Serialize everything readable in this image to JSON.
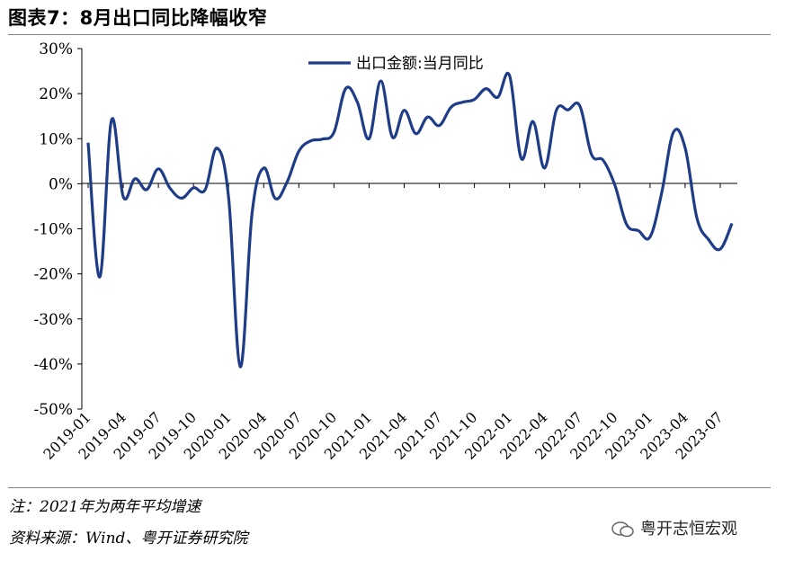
{
  "header": {
    "title": "图表7：8月出口同比降幅收窄"
  },
  "footer": {
    "note": "注：2021年为两年平均增速",
    "source": "资料来源：Wind、粤开证券研究院",
    "watermark": "粤开志恒宏观"
  },
  "chart_data": {
    "type": "line",
    "title": "",
    "xlabel": "",
    "ylabel": "",
    "ylim": [
      -50,
      30
    ],
    "y_ticks": [
      "30%",
      "20%",
      "10%",
      "0%",
      "-10%",
      "-20%",
      "-30%",
      "-40%",
      "-50%"
    ],
    "y_tick_values": [
      30,
      20,
      10,
      0,
      -10,
      -20,
      -30,
      -40,
      -50
    ],
    "x_tick_labels": [
      "2019-01",
      "2019-04",
      "2019-07",
      "2019-10",
      "2020-01",
      "2020-04",
      "2020-07",
      "2020-10",
      "2021-01",
      "2021-04",
      "2021-07",
      "2021-10",
      "2022-01",
      "2022-04",
      "2022-07",
      "2022-10",
      "2023-01",
      "2023-04",
      "2023-07"
    ],
    "legend_position": "top-center",
    "grid": false,
    "series": [
      {
        "name": "出口金额:当月同比",
        "color": "#1f3c88",
        "x": [
          "2019-01",
          "2019-02",
          "2019-03",
          "2019-04",
          "2019-05",
          "2019-06",
          "2019-07",
          "2019-08",
          "2019-09",
          "2019-10",
          "2019-11",
          "2019-12",
          "2020-01",
          "2020-02",
          "2020-03",
          "2020-04",
          "2020-05",
          "2020-06",
          "2020-07",
          "2020-08",
          "2020-09",
          "2020-10",
          "2020-11",
          "2020-12",
          "2021-01",
          "2021-02",
          "2021-03",
          "2021-04",
          "2021-05",
          "2021-06",
          "2021-07",
          "2021-08",
          "2021-09",
          "2021-10",
          "2021-11",
          "2021-12",
          "2022-01",
          "2022-02",
          "2022-03",
          "2022-04",
          "2022-05",
          "2022-06",
          "2022-07",
          "2022-08",
          "2022-09",
          "2022-10",
          "2022-11",
          "2022-12",
          "2023-01",
          "2023-02",
          "2023-03",
          "2023-04",
          "2023-05",
          "2023-06",
          "2023-07",
          "2023-08"
        ],
        "values": [
          9.1,
          -20.7,
          14.1,
          -2.9,
          1.1,
          -1.3,
          3.3,
          -1.0,
          -3.2,
          -0.9,
          -1.3,
          7.9,
          -3.0,
          -40.6,
          -6.6,
          3.5,
          -3.3,
          0.4,
          7.2,
          9.5,
          9.9,
          11.4,
          21.1,
          18.1,
          10.0,
          22.8,
          10.3,
          16.3,
          11.1,
          14.8,
          12.9,
          17.0,
          18.1,
          18.7,
          21.1,
          19.2,
          24.0,
          5.6,
          13.8,
          3.5,
          16.3,
          16.4,
          17.3,
          6.5,
          5.2,
          -0.3,
          -9.0,
          -10.4,
          -11.8,
          -2.0,
          11.4,
          8.0,
          -7.5,
          -12.4,
          -14.5,
          -8.8
        ]
      }
    ]
  }
}
